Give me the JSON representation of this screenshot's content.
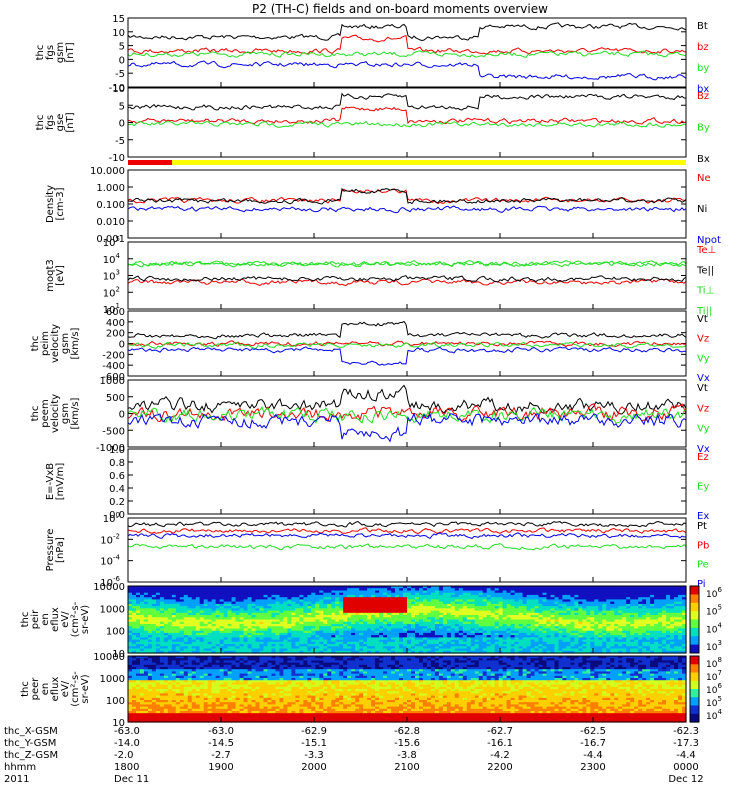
{
  "title": "P2 (TH-C) fields and on-board moments overview",
  "colors": {
    "black": "#000000",
    "red": "#ee0000",
    "green": "#22dd22",
    "blue": "#0000ee",
    "yellow": "#ffff00"
  },
  "chart_data": [
    {
      "type": "line",
      "name": "thc fgs gsm",
      "ylabel": [
        "thc",
        "fgs",
        "gsm",
        "[nT]"
      ],
      "ylim": [
        -15,
        15
      ],
      "yticks": [
        "15",
        "10",
        "5",
        "0",
        "-5",
        "-10"
      ],
      "series": [
        {
          "name": "Bt",
          "color": "black"
        },
        {
          "name": "bz",
          "color": "red"
        },
        {
          "name": "by",
          "color": "green"
        },
        {
          "name": "bx",
          "color": "blue"
        }
      ]
    },
    {
      "type": "line",
      "name": "thc fgs gse",
      "ylabel": [
        "thc",
        "fgs",
        "gse",
        "[nT]"
      ],
      "ylim": [
        -15,
        10
      ],
      "yticks": [
        "10",
        "5",
        "0",
        "-5",
        "-10"
      ],
      "series": [
        {
          "name": "Bz",
          "color": "red"
        },
        {
          "name": "By",
          "color": "green"
        },
        {
          "name": "Bx",
          "color": "black"
        }
      ]
    },
    {
      "type": "line",
      "name": "Density",
      "ylabel": [
        "Density",
        "[cm-3]"
      ],
      "scale": "log",
      "ylim": [
        0.001,
        10
      ],
      "yticks": [
        "10.000",
        "1.000",
        "0.100",
        "0.010",
        "0.001"
      ],
      "series": [
        {
          "name": "Ne",
          "color": "red"
        },
        {
          "name": "Ni",
          "color": "black"
        },
        {
          "name": "Npot",
          "color": "blue"
        }
      ]
    },
    {
      "type": "line",
      "name": "Temperature",
      "ylabel": [
        "moqt3",
        "[eV]"
      ],
      "scale": "log",
      "ylim": [
        10,
        100000
      ],
      "yticks": [
        "10",
        "10",
        "10",
        "10",
        "10"
      ],
      "ytick_exp": [
        "5",
        "4",
        "3",
        "2",
        "1"
      ],
      "series": [
        {
          "name": "Te⊥",
          "color": "red"
        },
        {
          "name": "Te||",
          "color": "black"
        },
        {
          "name": "Ti⊥",
          "color": "green"
        },
        {
          "name": "Ti||",
          "color": "green"
        }
      ]
    },
    {
      "type": "line",
      "name": "thc peim velocity gsm",
      "ylabel": [
        "thc",
        "peim",
        "velocity",
        "gsm",
        "[km/s]"
      ],
      "ylim": [
        -600,
        600
      ],
      "yticks": [
        "600",
        "400",
        "200",
        "0",
        "-200",
        "-400",
        "-600"
      ],
      "series": [
        {
          "name": "Vt",
          "color": "black"
        },
        {
          "name": "Vz",
          "color": "red"
        },
        {
          "name": "Vy",
          "color": "green"
        },
        {
          "name": "Vx",
          "color": "blue"
        }
      ]
    },
    {
      "type": "line",
      "name": "thc peem velocity gsm",
      "ylabel": [
        "thc",
        "peem",
        "velocity",
        "gsm",
        "[km/s]"
      ],
      "ylim": [
        -1000,
        1000
      ],
      "yticks": [
        "1000",
        "500",
        "0",
        "-500",
        "-1000"
      ],
      "series": [
        {
          "name": "Vt",
          "color": "black"
        },
        {
          "name": "Vz",
          "color": "red"
        },
        {
          "name": "Vy",
          "color": "green"
        },
        {
          "name": "Vx",
          "color": "blue"
        }
      ]
    },
    {
      "type": "line",
      "name": "E=-VxB",
      "ylabel": [
        "E=-VxB",
        "[mV/m]"
      ],
      "ylim": [
        0.0,
        1.0
      ],
      "yticks": [
        "1.0",
        "0.8",
        "0.6",
        "0.4",
        "0.2",
        "0.0"
      ],
      "series": [
        {
          "name": "Ez",
          "color": "red"
        },
        {
          "name": "Ey",
          "color": "green"
        },
        {
          "name": "Ex",
          "color": "blue"
        }
      ]
    },
    {
      "type": "line",
      "name": "Pressure",
      "ylabel": [
        "Pressure",
        "[nPa]"
      ],
      "scale": "log",
      "ylim": [
        1e-06,
        1
      ],
      "yticks": [
        "10",
        "10",
        "10",
        "10"
      ],
      "ytick_exp": [
        "0",
        "-2",
        "-4",
        "-6"
      ],
      "series": [
        {
          "name": "Pt",
          "color": "black"
        },
        {
          "name": "Pb",
          "color": "red"
        },
        {
          "name": "Pe",
          "color": "green"
        },
        {
          "name": "Pi",
          "color": "blue"
        }
      ]
    },
    {
      "type": "heatmap",
      "name": "thc peir en eflux",
      "ylabel": [
        "thc",
        "peir",
        "en",
        "eflux",
        "eV/",
        "(cm²-s-",
        "sr-eV)"
      ],
      "yticks": [
        "10000",
        "1000",
        "100",
        "10"
      ],
      "colorbar": [
        "10",
        "10",
        "10",
        "10"
      ],
      "colorbar_exp": [
        "6",
        "5",
        "4",
        "3"
      ]
    },
    {
      "type": "heatmap",
      "name": "thc peer en eflux",
      "ylabel": [
        "thc",
        "peer",
        "en",
        "eflux",
        "eV/",
        "(cm²-s-",
        "sr-eV)"
      ],
      "yticks": [
        "10000",
        "1000",
        "100",
        "10"
      ],
      "colorbar": [
        "10",
        "10",
        "10",
        "10",
        "10"
      ],
      "colorbar_exp": [
        "8",
        "7",
        "6",
        "5",
        "4"
      ]
    }
  ],
  "x_axis": {
    "rows": [
      {
        "label": "thc_X-GSM",
        "values": [
          "-63.0",
          "-63.0",
          "-62.9",
          "-62.8",
          "-62.7",
          "-62.5",
          "-62.3"
        ]
      },
      {
        "label": "thc_Y-GSM",
        "values": [
          "-14.0",
          "-14.5",
          "-15.1",
          "-15.6",
          "-16.1",
          "-16.7",
          "-17.3"
        ]
      },
      {
        "label": "thc_Z-GSM",
        "values": [
          "-2.0",
          "-2.7",
          "-3.3",
          "-3.8",
          "-4.2",
          "-4.4",
          "-4.4"
        ]
      },
      {
        "label": "hhmm",
        "values": [
          "1800",
          "1900",
          "2000",
          "2100",
          "2200",
          "2300",
          "0000"
        ]
      },
      {
        "label": "2011",
        "values": [
          "Dec 11",
          "",
          "",
          "",
          "",
          "",
          "Dec 12"
        ]
      }
    ]
  }
}
